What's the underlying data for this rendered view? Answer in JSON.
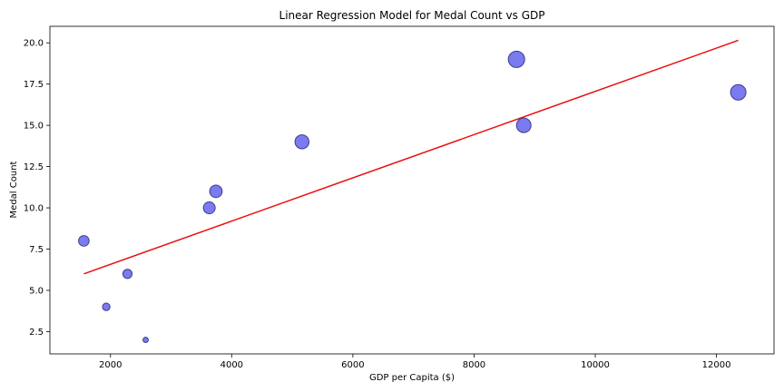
{
  "chart_data": {
    "type": "scatter",
    "title": "Linear Regression Model for Medal Count vs GDP",
    "xlabel": "GDP per Capita ($)",
    "ylabel": "Medal Count",
    "xlim": [
      1000,
      12950
    ],
    "ylim": [
      1.15,
      21.0
    ],
    "xticks": [
      2000,
      4000,
      6000,
      8000,
      10000,
      12000
    ],
    "yticks": [
      2.5,
      5.0,
      7.5,
      10.0,
      12.5,
      15.0,
      17.5,
      20.0
    ],
    "xtick_labels": [
      "2000",
      "4000",
      "6000",
      "8000",
      "10000",
      "12000"
    ],
    "ytick_labels": [
      "2.5",
      "5.0",
      "7.5",
      "10.0",
      "12.5",
      "15.0",
      "17.5",
      "20.0"
    ],
    "points": [
      {
        "x": 1560,
        "y": 8
      },
      {
        "x": 1930,
        "y": 4
      },
      {
        "x": 2280,
        "y": 6
      },
      {
        "x": 2580,
        "y": 2
      },
      {
        "x": 3630,
        "y": 10
      },
      {
        "x": 3740,
        "y": 11
      },
      {
        "x": 5160,
        "y": 14
      },
      {
        "x": 8700,
        "y": 19
      },
      {
        "x": 8820,
        "y": 15
      },
      {
        "x": 12360,
        "y": 17
      }
    ],
    "regression_line": {
      "x": [
        1560,
        12360
      ],
      "y": [
        6.0,
        20.15
      ]
    },
    "point_color": "#7b7bf0",
    "point_edge_color": "#3c3c8c",
    "line_color": "#e8100f",
    "grid": false,
    "legend": "none"
  }
}
